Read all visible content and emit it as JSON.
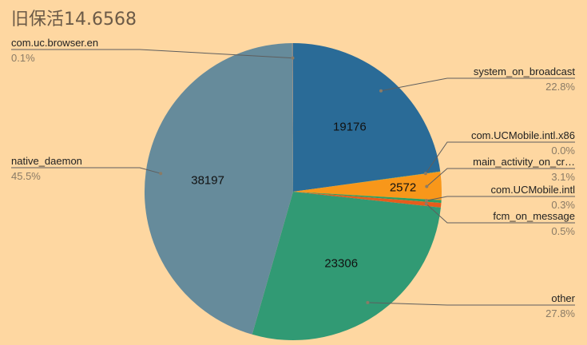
{
  "title": "旧保活14.6568",
  "chart_data": {
    "type": "pie",
    "slices": [
      {
        "name": "system_on_broadcast",
        "value": 19176,
        "pct": "22.8%",
        "value_label": "19176",
        "color": "#2a6b97"
      },
      {
        "name": "com.UCMobile.intl.x86",
        "value": 25,
        "pct": "0.0%",
        "value_label": "",
        "color": "#2ea06a"
      },
      {
        "name": "main_activity_on_cr…",
        "value": 2572,
        "pct": "3.1%",
        "value_label": "2572",
        "color": "#f8971a"
      },
      {
        "name": "com.UCMobile.intl",
        "value": 250,
        "pct": "0.3%",
        "value_label": "",
        "color": "#2e9f64"
      },
      {
        "name": "fcm_on_message",
        "value": 420,
        "pct": "0.5%",
        "value_label": "",
        "color": "#e65c1c"
      },
      {
        "name": "other",
        "value": 23306,
        "pct": "27.8%",
        "value_label": "23306",
        "color": "#319a74"
      },
      {
        "name": "native_daemon",
        "value": 38197,
        "pct": "45.5%",
        "value_label": "38197",
        "color": "#668b9b"
      },
      {
        "name": "com.uc.browser.en",
        "value": 84,
        "pct": "0.1%",
        "value_label": "",
        "color": "#8a8a8a"
      }
    ]
  }
}
